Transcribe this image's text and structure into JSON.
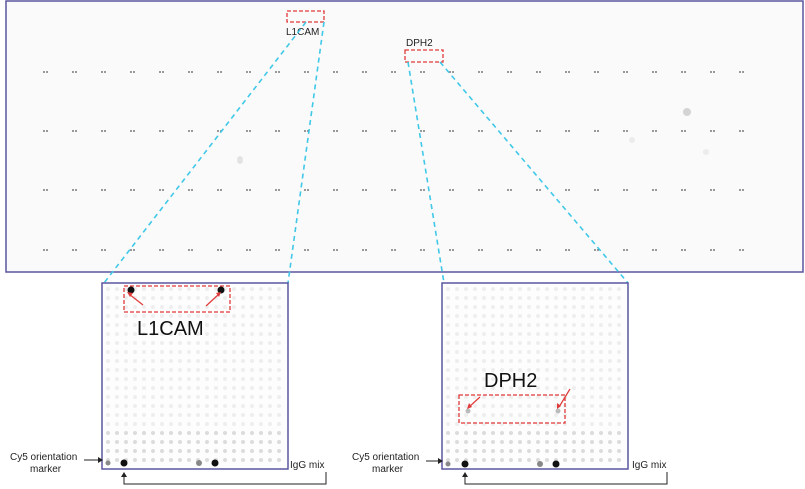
{
  "top_panel": {
    "callouts": [
      "L1CAM",
      "DPH2"
    ]
  },
  "left_zoom": {
    "label": "L1CAM",
    "marker_label_line1": "Cy5 orientation",
    "marker_label_line2": "marker",
    "igg_label": "IgG mix"
  },
  "right_zoom": {
    "label": "DPH2",
    "marker_label_line1": "Cy5 orientation",
    "marker_label_line2": "marker",
    "igg_label": "IgG mix"
  },
  "colors": {
    "frame": "#5a56a0",
    "zoom_lines": "#40c8e8",
    "highlight": "#e03a3a"
  }
}
